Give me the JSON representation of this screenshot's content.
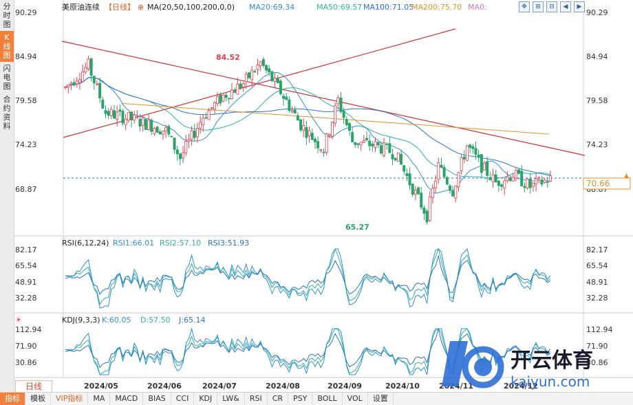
{
  "sidebar": {
    "items": [
      {
        "label": "分\n时\n图",
        "active": false
      },
      {
        "label": "K\n线\n图",
        "active": true
      },
      {
        "label": "闪\n电\n图",
        "active": false
      },
      {
        "label": "合\n约\n资\n料",
        "active": false
      }
    ]
  },
  "header": {
    "title": "美原油连续",
    "period": "【日线】",
    "ma_label": "MA(20,50,100,200,0,0)",
    "ma20": "MA20:69.34",
    "ma50": "MA50:69.57",
    "ma100": "MA100:71.05",
    "ma200": "MA200:75.70",
    "ma0": "MA0:"
  },
  "price_axis": {
    "labels": [
      "90.29",
      "84.94",
      "79.58",
      "74.23",
      "68.87"
    ],
    "current": "70.66"
  },
  "annotations": {
    "high": "84.52",
    "low": "65.27"
  },
  "rsi": {
    "label": "RSI(6,12,24)",
    "rsi1": "RSI1:66.01",
    "rsi2": "RSI2:57.10",
    "rsi3": "RSI3:51.93",
    "axis": [
      "82.17",
      "65.54",
      "48.91",
      "32.28"
    ]
  },
  "kdj": {
    "label": "KDJ(9,3,3)",
    "k": "K:60.05",
    "d": "D:57.50",
    "j": "J:65.14",
    "axis": [
      "112.94",
      "71.90",
      "30.86"
    ]
  },
  "date_axis": [
    "2024/05",
    "2024/06",
    "2024/07",
    "2024/08",
    "2024/09",
    "2024/10",
    "2024/11",
    "2024/12"
  ],
  "range_button": "日线",
  "bottom_tabs": [
    "指标",
    "模板",
    "VIP指标",
    "MA",
    "MACD",
    "BIAS",
    "CCI",
    "KDJ",
    "LW&",
    "RSI",
    "CR",
    "PSY",
    "BOLL",
    "VOL",
    "设置"
  ],
  "watermark": {
    "brand": "开云体育",
    "domain": "kaiyun.com"
  },
  "colors": {
    "up": "#e0404e",
    "down": "#2aa36b",
    "ma20": "#2f8fd8",
    "ma50": "#2bb3a0",
    "ma100": "#2a6fd0",
    "ma200": "#e0902a",
    "trend": "#d23030",
    "accent": "#f0803c"
  }
}
